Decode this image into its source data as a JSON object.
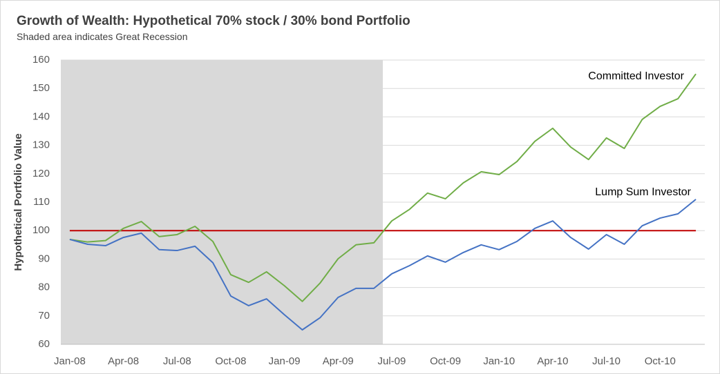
{
  "chart_data": {
    "type": "line",
    "title": "Growth of Wealth: Hypothetical 70% stock / 30% bond Portfolio",
    "subtitle": "Shaded area indicates Great Recession",
    "y_label": "Hypothetical Portfolio Value",
    "categories": [
      "Jan-08",
      null,
      null,
      "Apr-08",
      null,
      null,
      "Jul-08",
      null,
      null,
      "Oct-08",
      null,
      null,
      "Jan-09",
      null,
      null,
      "Apr-09",
      null,
      null,
      "Jul-09",
      null,
      null,
      "Oct-09",
      null,
      null,
      "Jan-10",
      null,
      null,
      "Apr-10",
      null,
      null,
      "Jul-10",
      null,
      null,
      "Oct-10",
      null,
      null
    ],
    "series": [
      {
        "name": "Committed Investor",
        "color": "#70ad47",
        "values": [
          96.9,
          96,
          96.5,
          100.8,
          103.2,
          97.9,
          98.6,
          101.5,
          96.2,
          84.5,
          81.8,
          85.5,
          80.6,
          75.1,
          81.6,
          90.1,
          95,
          95.7,
          103.4,
          107.5,
          113.2,
          111.2,
          116.8,
          120.7,
          119.7,
          124.3,
          131.4,
          136,
          129.4,
          125,
          132.6,
          128.9,
          139.1,
          143.7,
          146.4,
          155.1
        ]
      },
      {
        "name": "Lump Sum Investor",
        "color": "#4472c4",
        "values": [
          96.9,
          95.2,
          94.7,
          97.6,
          99.1,
          93.3,
          93,
          94.5,
          88.7,
          77,
          73.6,
          76,
          70.4,
          65.1,
          69.4,
          76.5,
          79.7,
          79.7,
          84.8,
          87.7,
          91.1,
          88.9,
          92.3,
          95,
          93.3,
          96.2,
          100.8,
          103.4,
          97.6,
          93.5,
          98.6,
          95.2,
          101.7,
          104.4,
          105.9,
          111
        ]
      }
    ],
    "reference_line": {
      "value": 100,
      "color": "#c00000"
    },
    "ylim": [
      60,
      160
    ],
    "yticks": [
      60,
      70,
      80,
      90,
      100,
      110,
      120,
      130,
      140,
      150,
      160
    ],
    "grid": true
  }
}
